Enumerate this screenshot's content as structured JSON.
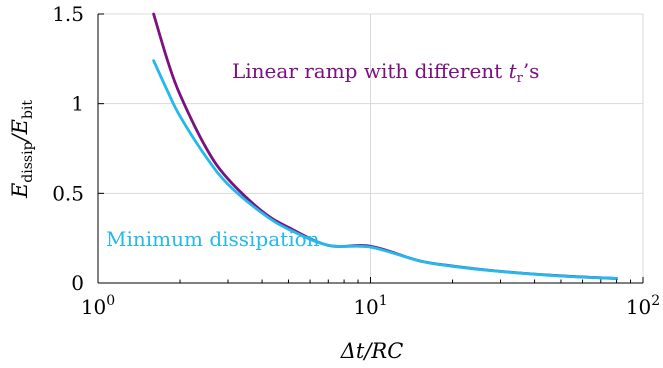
{
  "chart_data": {
    "type": "line",
    "title": "",
    "xlabel": "Δt/RC",
    "ylabel": {
      "base": "E",
      "sub1": "dissip",
      "mid": "/E",
      "sub2": "bit"
    },
    "x_scale": "log",
    "xlim": [
      1,
      100
    ],
    "ylim": [
      0,
      1.5
    ],
    "grid": true,
    "x_ticks": [
      {
        "value": 1,
        "base": "10",
        "exp": "0"
      },
      {
        "value": 10,
        "base": "10",
        "exp": "1"
      },
      {
        "value": 100,
        "base": "10",
        "exp": "2"
      }
    ],
    "y_ticks": [
      {
        "value": 0,
        "label": "0"
      },
      {
        "value": 0.5,
        "label": "0.5"
      },
      {
        "value": 1,
        "label": "1"
      },
      {
        "value": 1.5,
        "label": "1.5"
      }
    ],
    "series": [
      {
        "name_parts": {
          "pre": "Linear ramp with different ",
          "var": "t",
          "sub": "r",
          "post": "’s"
        },
        "color": "#7b1080",
        "x": [
          1.6,
          1.8,
          2,
          2.5,
          3,
          4,
          5,
          7,
          10,
          15,
          20,
          30,
          50,
          80
        ],
        "y": [
          1.5,
          1.24,
          1.05,
          0.75,
          0.58,
          0.4,
          0.31,
          0.21,
          0.205,
          0.125,
          0.095,
          0.065,
          0.04,
          0.025
        ]
      },
      {
        "name": "Minimum dissipation",
        "color": "#23b9ec",
        "x": [
          1.6,
          1.8,
          2,
          2.5,
          3,
          4,
          5,
          7,
          10,
          15,
          20,
          30,
          50,
          80
        ],
        "y": [
          1.24,
          1.07,
          0.93,
          0.7,
          0.55,
          0.39,
          0.3,
          0.21,
          0.2,
          0.125,
          0.093,
          0.064,
          0.039,
          0.025
        ]
      }
    ]
  }
}
